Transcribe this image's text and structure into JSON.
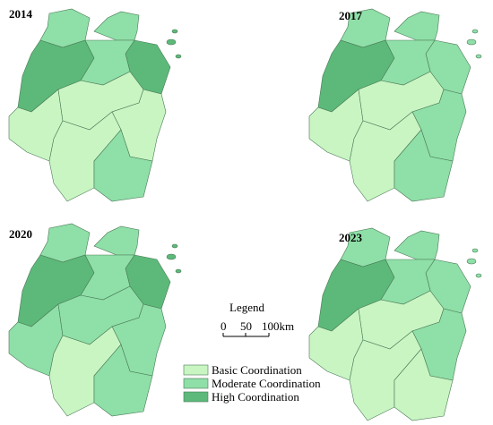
{
  "maps": [
    {
      "year": "2014",
      "regions": [
        1,
        1,
        2,
        2,
        1,
        0,
        0,
        0,
        0,
        1
      ]
    },
    {
      "year": "2017",
      "regions": [
        1,
        1,
        2,
        1,
        1,
        0,
        0,
        1,
        0,
        1
      ]
    },
    {
      "year": "2020",
      "regions": [
        1,
        1,
        2,
        2,
        1,
        1,
        1,
        1,
        0,
        1
      ]
    },
    {
      "year": "2023",
      "regions": [
        1,
        1,
        2,
        1,
        1,
        0,
        0,
        1,
        0,
        0
      ]
    }
  ],
  "legend": {
    "title": "Legend",
    "items": [
      {
        "label": "Basic Coordination",
        "color": "#c9f5c3"
      },
      {
        "label": "Moderate Coordination",
        "color": "#8fdfa8"
      },
      {
        "label": "High Coordination",
        "color": "#5cb97a"
      }
    ]
  },
  "scale": {
    "labels": [
      "0",
      "50",
      "100km"
    ]
  }
}
